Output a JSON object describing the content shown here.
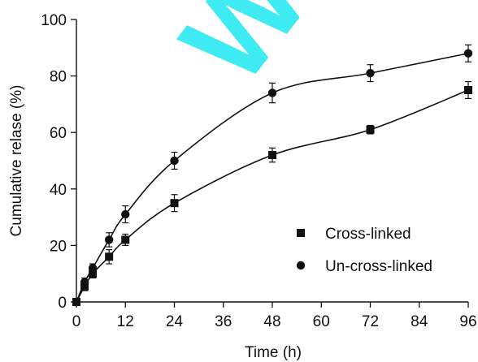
{
  "chart_data": {
    "type": "line",
    "title": "",
    "xlabel": "Time (h)",
    "ylabel": "Cumulative relase (%)",
    "xlim": [
      0,
      96
    ],
    "ylim": [
      0,
      100
    ],
    "xticks": [
      0,
      12,
      24,
      36,
      48,
      60,
      72,
      84,
      96
    ],
    "yticks": [
      0,
      20,
      40,
      60,
      80,
      100
    ],
    "xtick_labels": [
      "0",
      "12",
      "24",
      "36",
      "48",
      "60",
      "72",
      "84",
      "96"
    ],
    "ytick_labels": [
      "0",
      "20",
      "40",
      "60",
      "80",
      "100"
    ],
    "grid": false,
    "legend_position": "bottom-right",
    "watermark_text": "W",
    "series": [
      {
        "name": "Cross-linked",
        "marker": "square",
        "color": "#111111",
        "x": [
          0,
          2,
          4,
          8,
          12,
          24,
          48,
          72,
          96
        ],
        "y": [
          0,
          5.5,
          10,
          16,
          22,
          35,
          52,
          61,
          75
        ],
        "err": [
          0,
          1.5,
          1.5,
          2.5,
          2,
          3,
          2.5,
          1.5,
          3
        ]
      },
      {
        "name": "Un-cross-linked",
        "marker": "circle",
        "color": "#111111",
        "x": [
          0,
          2,
          4,
          8,
          12,
          24,
          48,
          72,
          96
        ],
        "y": [
          0,
          7,
          12,
          22,
          31,
          50,
          74,
          81,
          88
        ],
        "err": [
          0,
          1.5,
          1.5,
          2.5,
          3,
          3,
          3.5,
          3,
          3
        ]
      }
    ]
  }
}
